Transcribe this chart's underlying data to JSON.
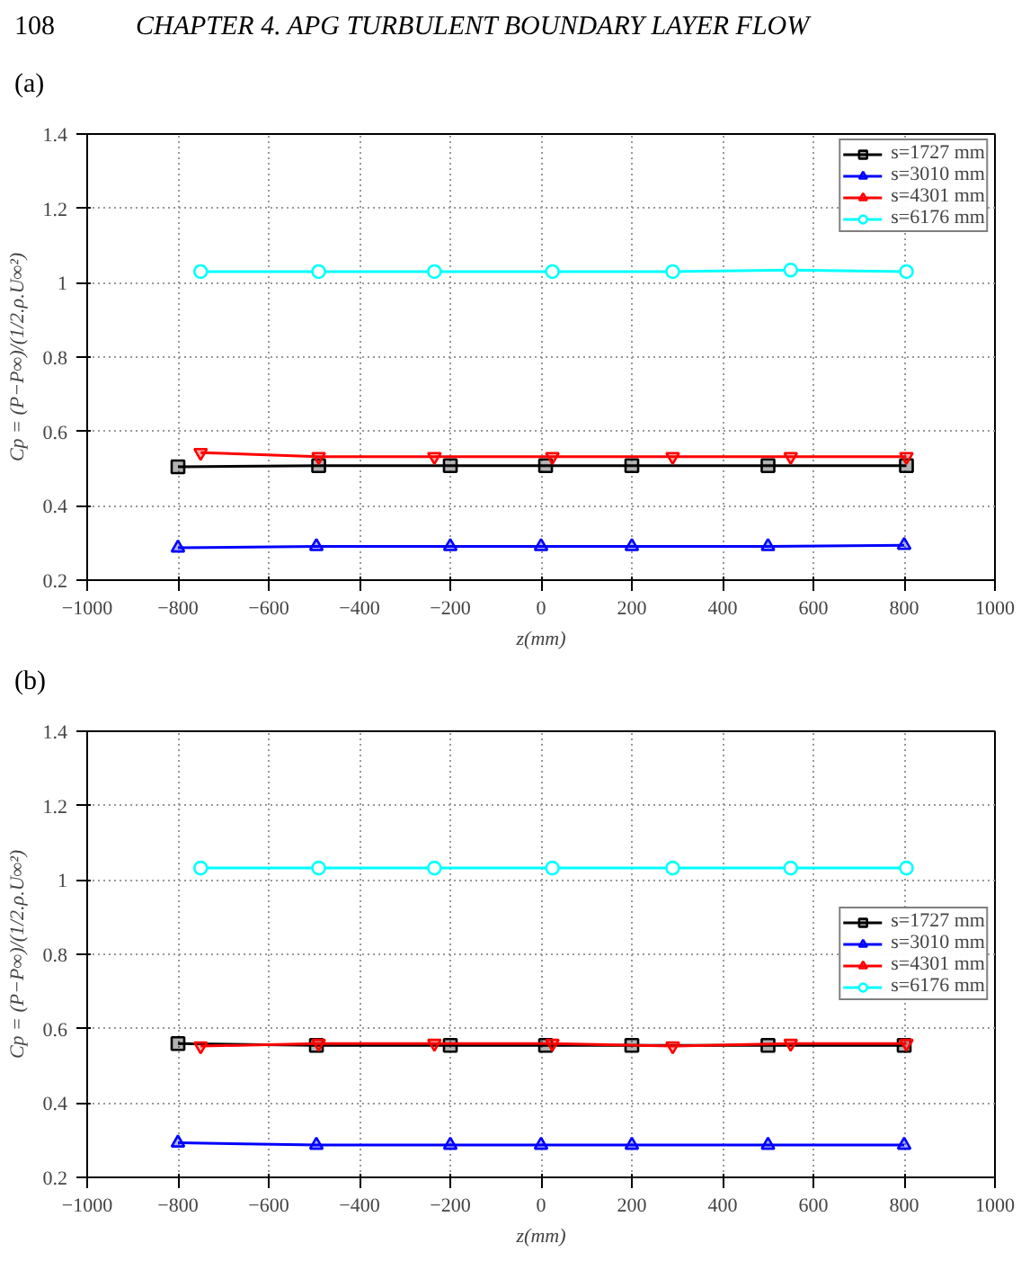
{
  "chart_data": [
    {
      "type": "line",
      "title": "(a)",
      "annotations": [
        "108",
        "CHAPTER 4.   APG TURBULENT BOUNDARY LAYER FLOW"
      ],
      "xlabel": "z(mm)",
      "ylabel": "Cp = (P−P∞)/(1/2.ρ.U∞²)",
      "xlim": [
        -1000,
        1000
      ],
      "ylim": [
        0.2,
        1.4
      ],
      "xticks": [
        -1000,
        -800,
        -600,
        -400,
        -200,
        0,
        200,
        400,
        600,
        800,
        1000
      ],
      "yticks": [
        0.2,
        0.4,
        0.6,
        0.8,
        1,
        1.2,
        1.4
      ],
      "grid": true,
      "legend": "top right",
      "series": [
        {
          "name": "s=1727 mm",
          "color": "#000000",
          "marker": "square",
          "x": [
            -800,
            -490,
            -200,
            10,
            200,
            500,
            805
          ],
          "values": [
            0.505,
            0.508,
            0.508,
            0.508,
            0.508,
            0.508,
            0.508
          ]
        },
        {
          "name": "s=3010 mm",
          "color": "#0000ff",
          "marker": "triangle",
          "x": [
            -800,
            -495,
            -200,
            0,
            200,
            500,
            800
          ],
          "values": [
            0.287,
            0.291,
            0.291,
            0.291,
            0.291,
            0.291,
            0.294
          ]
        },
        {
          "name": "s=4301 mm",
          "color": "#ff0000",
          "marker": "triangle",
          "x": [
            -750,
            -490,
            -235,
            25,
            290,
            550,
            805
          ],
          "values": [
            0.543,
            0.532,
            0.532,
            0.532,
            0.532,
            0.532,
            0.532
          ]
        },
        {
          "name": "s=6176 mm",
          "color": "#00ffff",
          "marker": "circle",
          "x": [
            -750,
            -490,
            -235,
            25,
            290,
            550,
            805
          ],
          "values": [
            1.03,
            1.03,
            1.03,
            1.03,
            1.03,
            1.034,
            1.03
          ]
        }
      ]
    },
    {
      "type": "line",
      "title": "(b)",
      "xlabel": "z(mm)",
      "ylabel": "Cp = (P−P∞)/(1/2.ρ.U∞²)",
      "xlim": [
        -1000,
        1000
      ],
      "ylim": [
        0.2,
        1.4
      ],
      "xticks": [
        -1000,
        -800,
        -600,
        -400,
        -200,
        0,
        200,
        400,
        600,
        800,
        1000
      ],
      "yticks": [
        0.2,
        0.4,
        0.6,
        0.8,
        1,
        1.2,
        1.4
      ],
      "grid": true,
      "legend": "right",
      "series": [
        {
          "name": "s=1727 mm",
          "color": "#000000",
          "marker": "square",
          "x": [
            -800,
            -495,
            -200,
            10,
            200,
            500,
            800
          ],
          "values": [
            0.56,
            0.555,
            0.555,
            0.555,
            0.555,
            0.555,
            0.555
          ]
        },
        {
          "name": "s=3010 mm",
          "color": "#0000ff",
          "marker": "triangle",
          "x": [
            -800,
            -495,
            -200,
            0,
            200,
            500,
            800
          ],
          "values": [
            0.293,
            0.287,
            0.287,
            0.287,
            0.287,
            0.287,
            0.287
          ]
        },
        {
          "name": "s=4301 mm",
          "color": "#ff0000",
          "marker": "triangle",
          "x": [
            -750,
            -490,
            -235,
            25,
            290,
            550,
            805
          ],
          "values": [
            0.553,
            0.56,
            0.56,
            0.56,
            0.553,
            0.56,
            0.56
          ]
        },
        {
          "name": "s=6176 mm",
          "color": "#00ffff",
          "marker": "circle",
          "x": [
            -750,
            -490,
            -235,
            25,
            290,
            550,
            805
          ],
          "values": [
            1.032,
            1.032,
            1.032,
            1.032,
            1.032,
            1.032,
            1.032
          ]
        }
      ]
    }
  ]
}
